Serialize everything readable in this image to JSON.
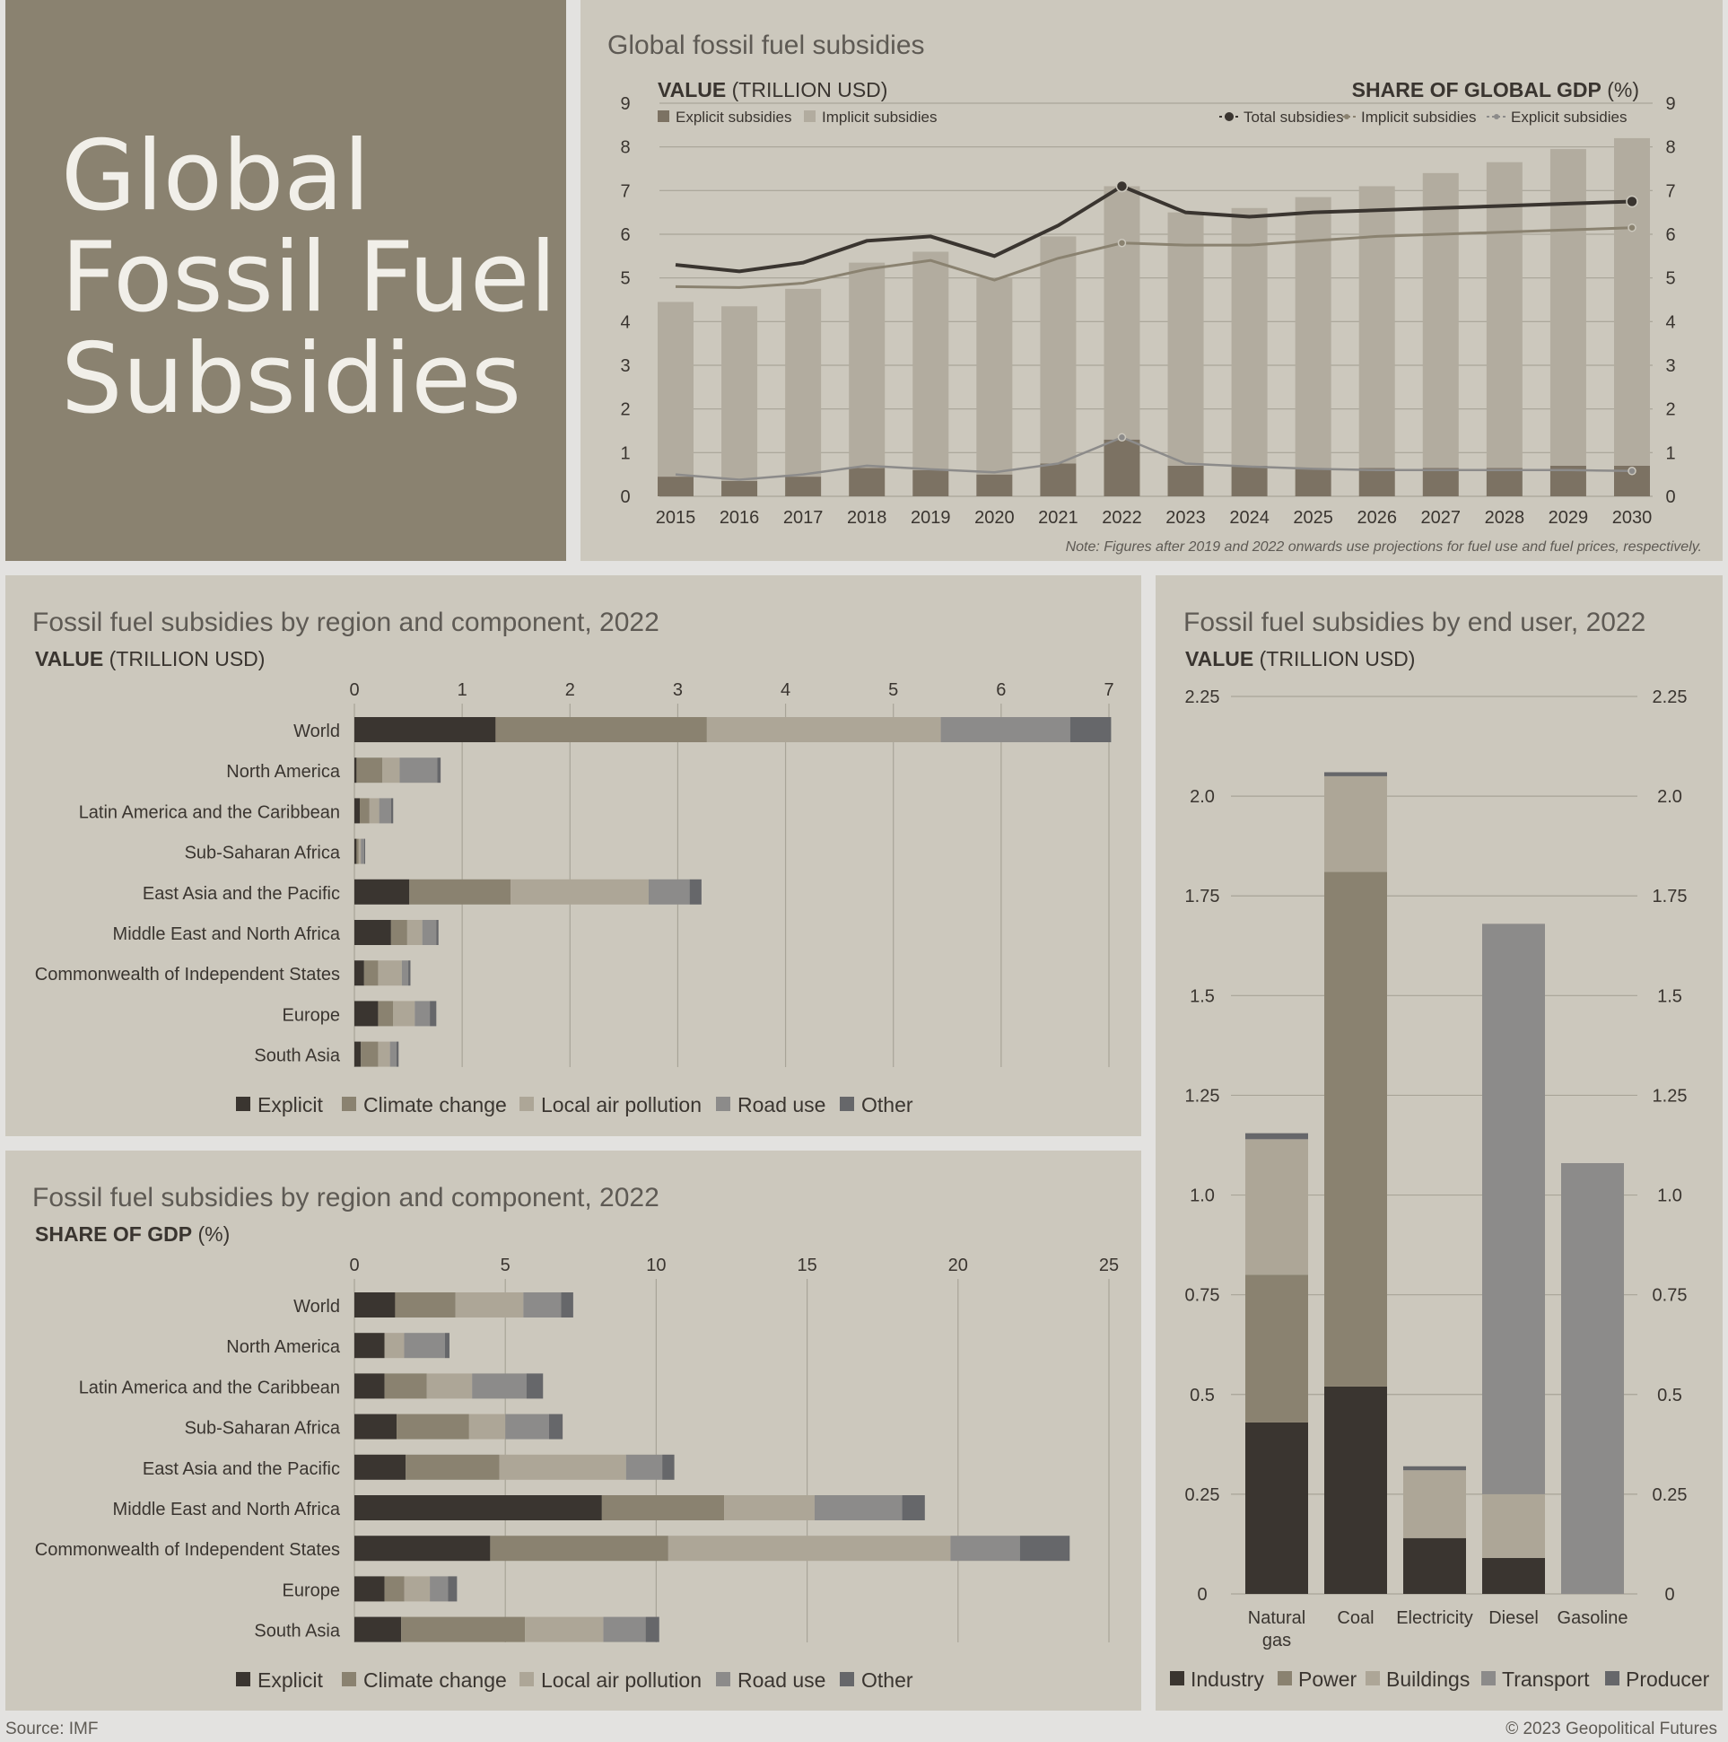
{
  "page": {
    "title_lines": [
      "Global",
      "Fossil Fuel",
      "Subsidies"
    ],
    "source": "Source: IMF",
    "copyright": "© 2023 Geopolitical Futures"
  },
  "colors": {
    "explicit": "#3a3530",
    "climate": "#8a8270",
    "local_air": "#ada697",
    "road": "#8c8b8a",
    "other": "#66676a",
    "implicit_bar": "#b2ac9f",
    "explicit_bar": "#7c7263"
  },
  "chart_data": [
    {
      "id": "global",
      "type": "bar",
      "title": "Global fossil fuel subsidies",
      "ylabel_bold": "VALUE",
      "ylabel_rest": " (TRILLION USD)",
      "y2label_bold": "SHARE OF GLOBAL GDP",
      "y2label_rest": " (%)",
      "note": "Note: Figures after 2019 and 2022 onwards use projections for fuel use and fuel prices, respectively.",
      "categories": [
        "2015",
        "2016",
        "2017",
        "2018",
        "2019",
        "2020",
        "2021",
        "2022",
        "2023",
        "2024",
        "2025",
        "2026",
        "2027",
        "2028",
        "2029",
        "2030"
      ],
      "yticks": [
        "0",
        "1",
        "2",
        "3",
        "4",
        "5",
        "6",
        "7",
        "8",
        "9"
      ],
      "ylim": [
        0,
        9
      ],
      "y2lim": [
        0,
        9
      ],
      "series": [
        {
          "name": "Explicit subsidies",
          "values": [
            0.45,
            0.35,
            0.45,
            0.65,
            0.6,
            0.5,
            0.75,
            1.3,
            0.7,
            0.7,
            0.65,
            0.65,
            0.65,
            0.65,
            0.7,
            0.7
          ]
        },
        {
          "name": "Implicit subsidies",
          "values": [
            4.0,
            4.0,
            4.3,
            4.7,
            5.0,
            4.5,
            5.2,
            5.8,
            5.8,
            5.9,
            6.2,
            6.45,
            6.75,
            7.0,
            7.25,
            7.5
          ]
        }
      ],
      "line_series": [
        {
          "name": "Total subsidies",
          "values": [
            5.3,
            5.15,
            5.35,
            5.85,
            5.95,
            5.5,
            6.2,
            7.1,
            6.5,
            6.4,
            6.5,
            6.55,
            6.6,
            6.65,
            6.7,
            6.75
          ]
        },
        {
          "name": "Implicit subsidies",
          "values": [
            4.8,
            4.78,
            4.88,
            5.2,
            5.4,
            4.95,
            5.45,
            5.8,
            5.75,
            5.75,
            5.85,
            5.95,
            6.0,
            6.05,
            6.1,
            6.15
          ]
        },
        {
          "name": "Explicit subsidies",
          "values": [
            0.5,
            0.38,
            0.5,
            0.7,
            0.62,
            0.55,
            0.75,
            1.35,
            0.75,
            0.68,
            0.63,
            0.6,
            0.6,
            0.6,
            0.6,
            0.58
          ]
        }
      ],
      "legend_left": [
        "Explicit subsidies",
        "Implicit subsidies"
      ],
      "legend_right": [
        "Total subsidies",
        "Implicit subsidies",
        "Explicit subsidies"
      ]
    },
    {
      "id": "region_value",
      "type": "bar",
      "orientation": "horizontal-stacked",
      "title": "Fossil fuel subsidies by region and component, 2022",
      "ylabel_bold": "VALUE",
      "ylabel_rest": " (TRILLION USD)",
      "xticks": [
        "0",
        "1",
        "2",
        "3",
        "4",
        "5",
        "6",
        "7"
      ],
      "xlim": [
        0,
        7
      ],
      "categories": [
        "World",
        "North America",
        "Latin America and the Caribbean",
        "Sub-Saharan Africa",
        "East Asia and the Pacific",
        "Middle East and North Africa",
        "Commonwealth of Independent States",
        "Europe",
        "South Asia"
      ],
      "series": [
        {
          "name": "Explicit",
          "values": [
            1.31,
            0.02,
            0.05,
            0.02,
            0.51,
            0.34,
            0.09,
            0.22,
            0.06
          ]
        },
        {
          "name": "Climate change",
          "values": [
            1.96,
            0.24,
            0.09,
            0.02,
            0.94,
            0.15,
            0.13,
            0.14,
            0.16
          ]
        },
        {
          "name": "Local air pollution",
          "values": [
            2.17,
            0.16,
            0.09,
            0.02,
            1.28,
            0.14,
            0.22,
            0.2,
            0.11
          ]
        },
        {
          "name": "Road use",
          "values": [
            1.2,
            0.35,
            0.11,
            0.03,
            0.38,
            0.13,
            0.06,
            0.14,
            0.06
          ]
        },
        {
          "name": "Other",
          "values": [
            0.38,
            0.03,
            0.02,
            0.01,
            0.11,
            0.02,
            0.02,
            0.06,
            0.02
          ]
        }
      ],
      "legend": [
        "Explicit",
        "Climate change",
        "Local air pollution",
        "Road use",
        "Other"
      ]
    },
    {
      "id": "region_gdp",
      "type": "bar",
      "orientation": "horizontal-stacked",
      "title": "Fossil fuel subsidies by region and component, 2022",
      "ylabel_bold": "SHARE OF GDP",
      "ylabel_rest": " (%)",
      "xticks": [
        "0",
        "5",
        "10",
        "15",
        "20",
        "25"
      ],
      "xlim": [
        0,
        25
      ],
      "categories": [
        "World",
        "North America",
        "Latin America and the Caribbean",
        "Sub-Saharan Africa",
        "East Asia and the Pacific",
        "Middle East and North Africa",
        "Commonwealth of Independent States",
        "Europe",
        "South Asia"
      ],
      "series": [
        {
          "name": "Explicit",
          "values": [
            1.35,
            1.0,
            1.0,
            1.4,
            1.7,
            8.2,
            4.5,
            1.0,
            1.55
          ]
        },
        {
          "name": "Climate change",
          "values": [
            2.0,
            0.0,
            1.4,
            2.4,
            3.1,
            4.05,
            5.9,
            0.65,
            4.1
          ]
        },
        {
          "name": "Local air pollution",
          "values": [
            2.25,
            0.65,
            1.5,
            1.2,
            4.2,
            3.0,
            9.35,
            0.85,
            2.6
          ]
        },
        {
          "name": "Road use",
          "values": [
            1.25,
            1.35,
            1.8,
            1.45,
            1.2,
            2.9,
            2.3,
            0.6,
            1.4
          ]
        },
        {
          "name": "Other",
          "values": [
            0.4,
            0.15,
            0.55,
            0.45,
            0.4,
            0.75,
            1.65,
            0.3,
            0.45
          ]
        }
      ],
      "legend": [
        "Explicit",
        "Climate change",
        "Local air pollution",
        "Road use",
        "Other"
      ]
    },
    {
      "id": "end_user",
      "type": "bar",
      "orientation": "vertical-stacked",
      "title": "Fossil fuel subsidies by end user, 2022",
      "ylabel_bold": "VALUE",
      "ylabel_rest": " (TRILLION USD)",
      "yticks": [
        "0",
        "0.25",
        "0.5",
        "0.75",
        "1.0",
        "1.25",
        "1.5",
        "1.75",
        "2.0",
        "2.25"
      ],
      "ylim": [
        0,
        2.25
      ],
      "categories": [
        [
          "Natural",
          "gas"
        ],
        [
          "Coal"
        ],
        [
          "Electricity"
        ],
        [
          "Diesel"
        ],
        [
          "Gasoline"
        ]
      ],
      "series": [
        {
          "name": "Industry",
          "values": [
            0.43,
            0.52,
            0.14,
            0.09,
            0.0
          ]
        },
        {
          "name": "Power",
          "values": [
            0.37,
            1.29,
            0.0,
            0.0,
            0.0
          ]
        },
        {
          "name": "Buildings",
          "values": [
            0.34,
            0.24,
            0.17,
            0.16,
            0.0
          ]
        },
        {
          "name": "Transport",
          "values": [
            0.0,
            0.0,
            0.0,
            1.43,
            1.08
          ]
        },
        {
          "name": "Producer",
          "values": [
            0.015,
            0.01,
            0.01,
            0.0,
            0.0
          ]
        }
      ],
      "legend": [
        "Industry",
        "Power",
        "Buildings",
        "Transport",
        "Producer"
      ]
    }
  ]
}
